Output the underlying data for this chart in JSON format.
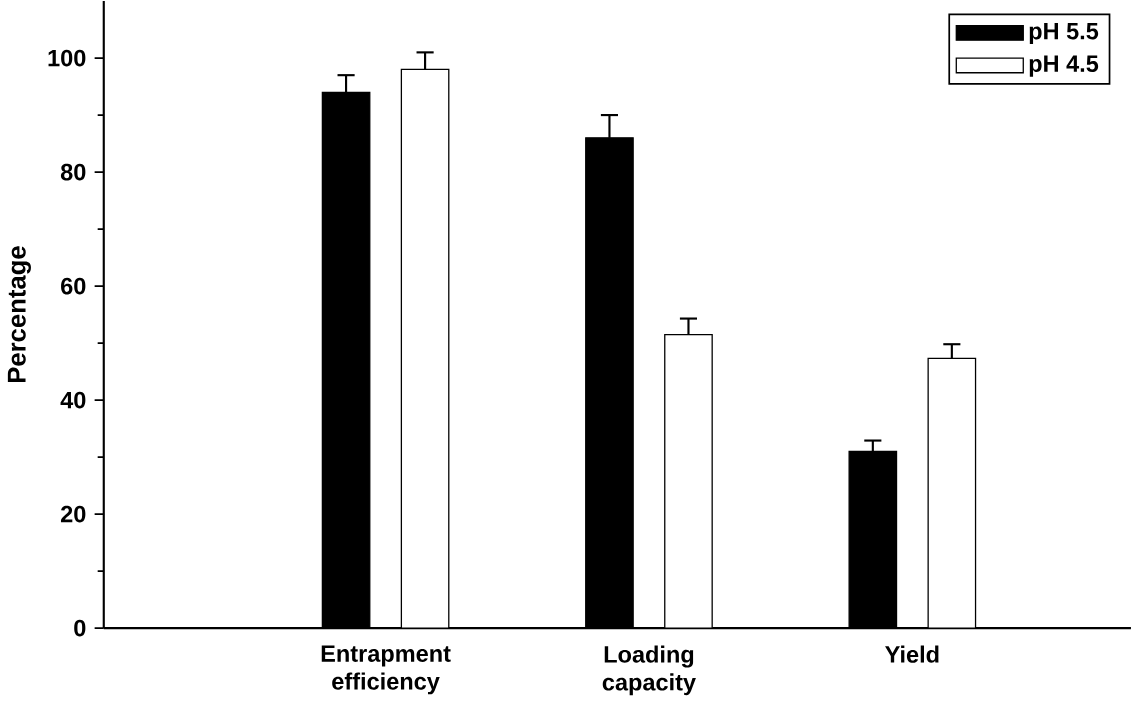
{
  "chart_data": {
    "type": "bar",
    "ylabel": "Percentage",
    "categories": [
      "Entrapment efficiency",
      "Loading capacity",
      "Yield"
    ],
    "series": [
      {
        "name": "pH 5.5",
        "color": "#000000",
        "values": [
          94,
          86,
          31
        ],
        "errors": [
          3,
          4,
          1.9
        ]
      },
      {
        "name": "pH 4.5",
        "color": "#ffffff",
        "values": [
          98,
          51.5,
          47.3
        ],
        "errors": [
          3,
          2.8,
          2.5
        ]
      }
    ],
    "ylim": [
      0,
      110
    ],
    "yticks": [
      0,
      20,
      40,
      60,
      80,
      100
    ],
    "grid": false,
    "legend": "top right"
  }
}
